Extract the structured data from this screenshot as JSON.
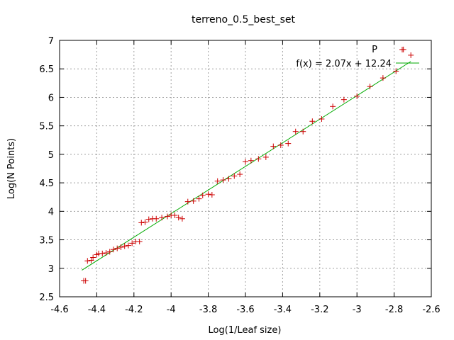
{
  "chart_data": {
    "type": "scatter",
    "title": "terreno_0.5_best_set",
    "xlabel": "Log(1/Leaf size)",
    "ylabel": "Log(N Points)",
    "xlim": [
      -4.6,
      -2.6
    ],
    "ylim": [
      2.5,
      7
    ],
    "xticks": [
      -4.6,
      -4.4,
      -4.2,
      -4,
      -3.8,
      -3.6,
      -3.4,
      -3.2,
      -3,
      -2.8,
      -2.6
    ],
    "xtick_labels": [
      "-4.6",
      "-4.4",
      "-4.2",
      "-4",
      "-3.8",
      "-3.6",
      "-3.4",
      "-3.2",
      "-3",
      "-2.8",
      "-2.6"
    ],
    "yticks": [
      2.5,
      3,
      3.5,
      4,
      4.5,
      5,
      5.5,
      6,
      6.5,
      7
    ],
    "ytick_labels": [
      "2.5",
      "3",
      "3.5",
      "4",
      "4.5",
      "5",
      "5.5",
      "6",
      "6.5",
      "7"
    ],
    "grid": true,
    "legend_position": "top-right",
    "colors": {
      "points": "#cc0000",
      "fit": "#00aa00",
      "grid": "#a0a0a0",
      "frame": "#000000"
    },
    "series": [
      {
        "name": "P",
        "marker": "plus",
        "points": [
          [
            -4.47,
            2.78
          ],
          [
            -4.46,
            2.78
          ],
          [
            -4.45,
            3.13
          ],
          [
            -4.43,
            3.14
          ],
          [
            -4.42,
            3.19
          ],
          [
            -4.4,
            3.24
          ],
          [
            -4.39,
            3.26
          ],
          [
            -4.37,
            3.26
          ],
          [
            -4.35,
            3.27
          ],
          [
            -4.33,
            3.29
          ],
          [
            -4.31,
            3.33
          ],
          [
            -4.29,
            3.35
          ],
          [
            -4.27,
            3.37
          ],
          [
            -4.25,
            3.39
          ],
          [
            -4.23,
            3.4
          ],
          [
            -4.21,
            3.44
          ],
          [
            -4.19,
            3.47
          ],
          [
            -4.17,
            3.47
          ],
          [
            -4.16,
            3.8
          ],
          [
            -4.14,
            3.81
          ],
          [
            -4.12,
            3.86
          ],
          [
            -4.1,
            3.87
          ],
          [
            -4.08,
            3.87
          ],
          [
            -4.05,
            3.89
          ],
          [
            -4.02,
            3.91
          ],
          [
            -4.0,
            3.93
          ],
          [
            -3.98,
            3.93
          ],
          [
            -3.96,
            3.89
          ],
          [
            -3.94,
            3.87
          ],
          [
            -3.91,
            4.17
          ],
          [
            -3.88,
            4.18
          ],
          [
            -3.85,
            4.22
          ],
          [
            -3.83,
            4.28
          ],
          [
            -3.8,
            4.3
          ],
          [
            -3.78,
            4.29
          ],
          [
            -3.75,
            4.53
          ],
          [
            -3.72,
            4.55
          ],
          [
            -3.69,
            4.57
          ],
          [
            -3.66,
            4.62
          ],
          [
            -3.63,
            4.65
          ],
          [
            -3.6,
            4.87
          ],
          [
            -3.57,
            4.89
          ],
          [
            -3.53,
            4.92
          ],
          [
            -3.49,
            4.95
          ],
          [
            -3.45,
            5.14
          ],
          [
            -3.41,
            5.16
          ],
          [
            -3.37,
            5.19
          ],
          [
            -3.33,
            5.4
          ],
          [
            -3.29,
            5.4
          ],
          [
            -3.24,
            5.58
          ],
          [
            -3.19,
            5.62
          ],
          [
            -3.13,
            5.84
          ],
          [
            -3.07,
            5.96
          ],
          [
            -3.0,
            6.02
          ],
          [
            -2.93,
            6.19
          ],
          [
            -2.86,
            6.34
          ],
          [
            -2.79,
            6.46
          ],
          [
            -2.75,
            6.84
          ],
          [
            -2.71,
            6.74
          ]
        ]
      },
      {
        "name": "f(x) = 2.07x + 12.24",
        "type": "line",
        "slope": 2.07,
        "intercept": 12.24,
        "x_range": [
          -4.48,
          -2.71
        ]
      }
    ]
  }
}
